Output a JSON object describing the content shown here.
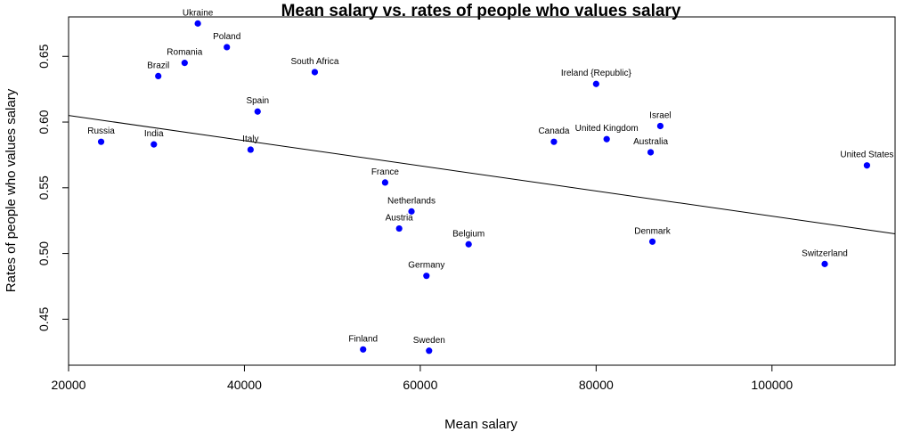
{
  "chart_data": {
    "type": "scatter",
    "title": "Mean salary vs. rates of people who values salary",
    "xlabel": "Mean salary",
    "ylabel": "Rates of people who values salary",
    "xlim": [
      20000,
      114000
    ],
    "ylim": [
      0.415,
      0.68
    ],
    "xticks": [
      20000,
      40000,
      60000,
      80000,
      100000
    ],
    "yticks": [
      0.45,
      0.5,
      0.55,
      0.6,
      0.65
    ],
    "grid": false,
    "point_color": "#0000ff",
    "trendline": {
      "x_start": 20000,
      "y_start": 0.605,
      "x_end": 114000,
      "y_end": 0.515
    },
    "points": [
      {
        "label": "Ukraine",
        "x": 34700,
        "y": 0.675
      },
      {
        "label": "Poland",
        "x": 38000,
        "y": 0.657
      },
      {
        "label": "Romania",
        "x": 33200,
        "y": 0.645
      },
      {
        "label": "Brazil",
        "x": 30200,
        "y": 0.635
      },
      {
        "label": "South Africa",
        "x": 48000,
        "y": 0.638
      },
      {
        "label": "Spain",
        "x": 41500,
        "y": 0.608
      },
      {
        "label": "Russia",
        "x": 23700,
        "y": 0.585
      },
      {
        "label": "India",
        "x": 29700,
        "y": 0.583
      },
      {
        "label": "Italy",
        "x": 40700,
        "y": 0.579
      },
      {
        "label": "France",
        "x": 56000,
        "y": 0.554
      },
      {
        "label": "Netherlands",
        "x": 59000,
        "y": 0.532
      },
      {
        "label": "Austria",
        "x": 57600,
        "y": 0.519
      },
      {
        "label": "Belgium",
        "x": 65500,
        "y": 0.507
      },
      {
        "label": "Germany",
        "x": 60700,
        "y": 0.483
      },
      {
        "label": "Finland",
        "x": 53500,
        "y": 0.427
      },
      {
        "label": "Sweden",
        "x": 61000,
        "y": 0.426
      },
      {
        "label": "Ireland {Republic}",
        "x": 80000,
        "y": 0.629
      },
      {
        "label": "Canada",
        "x": 75200,
        "y": 0.585
      },
      {
        "label": "United Kingdom",
        "x": 81200,
        "y": 0.587
      },
      {
        "label": "Israel",
        "x": 87300,
        "y": 0.597
      },
      {
        "label": "Australia",
        "x": 86200,
        "y": 0.577
      },
      {
        "label": "Denmark",
        "x": 86400,
        "y": 0.509
      },
      {
        "label": "United States",
        "x": 110800,
        "y": 0.567
      },
      {
        "label": "Switzerland",
        "x": 106000,
        "y": 0.492
      }
    ]
  }
}
